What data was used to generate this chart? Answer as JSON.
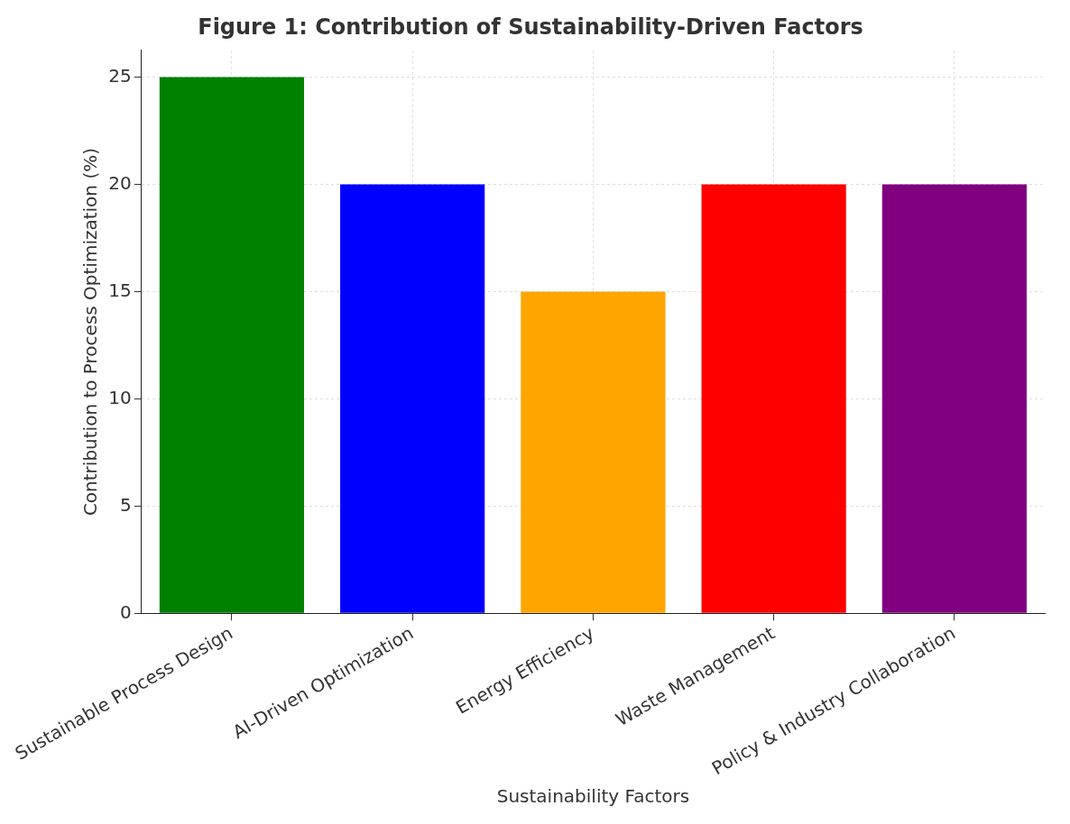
{
  "chart_data": {
    "type": "bar",
    "title": "Figure 1: Contribution of Sustainability-Driven Factors",
    "xlabel": "Sustainability Factors",
    "ylabel": "Contribution to Process Optimization (%)",
    "categories": [
      "Sustainable Process Design",
      "AI-Driven Optimization",
      "Energy Efficiency",
      "Waste Management",
      "Policy & Industry Collaboration"
    ],
    "values": [
      25,
      20,
      15,
      20,
      20
    ],
    "colors": [
      "#008000",
      "#0000ff",
      "#ffa500",
      "#ff0000",
      "#800080"
    ],
    "ylim": [
      0,
      26.25
    ],
    "yticks": [
      0,
      5,
      10,
      15,
      20,
      25
    ],
    "grid": true
  }
}
